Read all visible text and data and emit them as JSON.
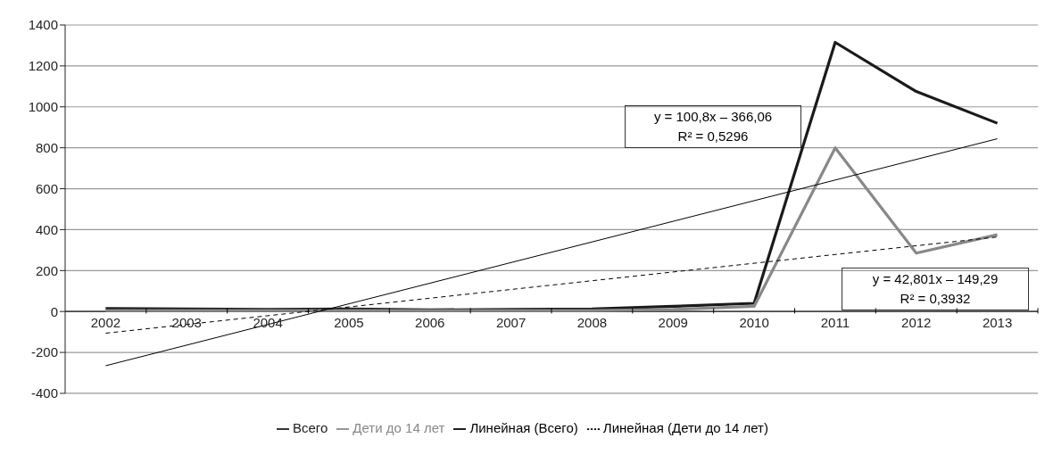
{
  "chart_data": {
    "type": "line",
    "categories": [
      "2002",
      "2003",
      "2004",
      "2005",
      "2006",
      "2007",
      "2008",
      "2009",
      "2010",
      "2011",
      "2012",
      "2013"
    ],
    "series": [
      {
        "name": "Всего",
        "color": "#1a1a1a",
        "values": [
          15,
          12,
          10,
          12,
          8,
          10,
          12,
          25,
          40,
          1315,
          1075,
          920
        ]
      },
      {
        "name": "Дети до 14 лет",
        "color": "#888888",
        "values": [
          5,
          5,
          5,
          5,
          5,
          5,
          5,
          10,
          25,
          800,
          285,
          375
        ]
      },
      {
        "name": "Линейная (Всего)",
        "color": "#000000",
        "line_style": "solid",
        "values": [
          -265,
          null,
          null,
          null,
          null,
          null,
          null,
          null,
          null,
          null,
          null,
          844
        ]
      },
      {
        "name": "Линейная (Дети до 14 лет)",
        "color": "#000000",
        "line_style": "dashed",
        "values": [
          -106,
          null,
          null,
          null,
          null,
          null,
          null,
          null,
          null,
          null,
          null,
          364
        ]
      }
    ],
    "ylim": [
      -400,
      1400
    ],
    "yticks": [
      -400,
      -200,
      0,
      200,
      400,
      600,
      800,
      1000,
      1200,
      1400
    ],
    "grid": "y",
    "legend": "bottom",
    "marker": "none",
    "annotations": [
      "y = 100,8x – 366,06",
      "R² = 0,5296",
      "y = 42,801x – 149,29",
      "R² = 0,3932"
    ]
  }
}
